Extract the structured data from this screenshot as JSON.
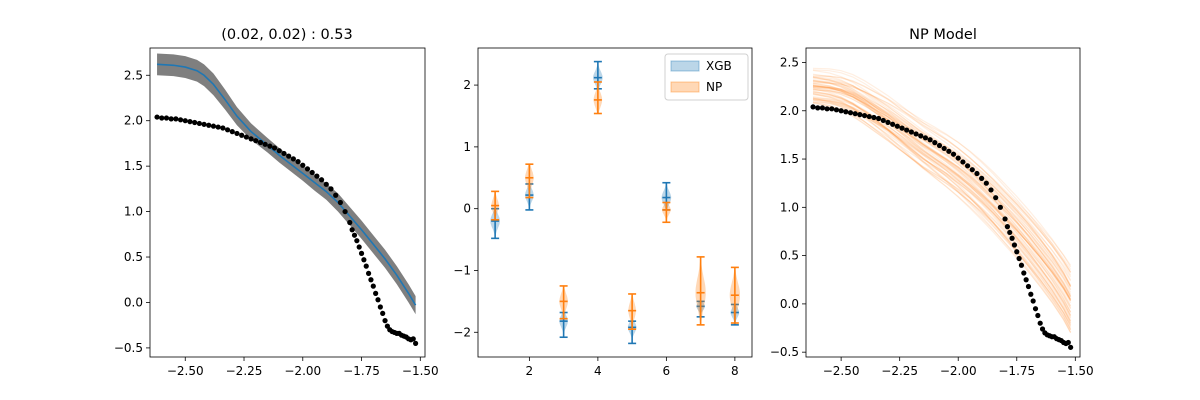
{
  "colors": {
    "xgb": "#1f77b4",
    "np": "#ff7f0e",
    "band": "#7f7f7f",
    "data": "#000000"
  },
  "chart_data": [
    {
      "type": "line",
      "title": "(0.02, 0.02) : 0.53",
      "xlim": [
        -2.65,
        -1.48
      ],
      "ylim": [
        -0.6,
        2.8
      ],
      "xticks": [
        -2.5,
        -2.25,
        -2.0,
        -1.75,
        -1.5
      ],
      "xtick_labels": [
        "−2.50",
        "−2.25",
        "−2.00",
        "−1.75",
        "−1.50"
      ],
      "yticks": [
        -0.5,
        0.0,
        0.5,
        1.0,
        1.5,
        2.0,
        2.5
      ],
      "ytick_labels": [
        "−0.5",
        "0.0",
        "0.5",
        "1.0",
        "1.5",
        "2.0",
        "2.5"
      ],
      "mean_line": {
        "x": [
          -2.62,
          -2.55,
          -2.5,
          -2.45,
          -2.42,
          -2.38,
          -2.33,
          -2.28,
          -2.22,
          -2.15,
          -2.1,
          -2.05,
          -2.0,
          -1.95,
          -1.9,
          -1.85,
          -1.8,
          -1.75,
          -1.7,
          -1.65,
          -1.6,
          -1.55,
          -1.52
        ],
        "y": [
          2.62,
          2.61,
          2.59,
          2.55,
          2.5,
          2.4,
          2.23,
          2.05,
          1.88,
          1.73,
          1.62,
          1.52,
          1.42,
          1.32,
          1.22,
          1.1,
          0.95,
          0.8,
          0.64,
          0.48,
          0.3,
          0.1,
          -0.03
        ]
      },
      "band_halfwidth": [
        0.12,
        0.12,
        0.12,
        0.12,
        0.12,
        0.12,
        0.11,
        0.1,
        0.09,
        0.08,
        0.08,
        0.08,
        0.08,
        0.09,
        0.09,
        0.1,
        0.1,
        0.1,
        0.1,
        0.1,
        0.1,
        0.1,
        0.1
      ],
      "scatter": {
        "x": [
          -2.62,
          -2.6,
          -2.58,
          -2.56,
          -2.54,
          -2.52,
          -2.5,
          -2.48,
          -2.46,
          -2.44,
          -2.42,
          -2.4,
          -2.38,
          -2.36,
          -2.34,
          -2.32,
          -2.3,
          -2.28,
          -2.26,
          -2.24,
          -2.22,
          -2.2,
          -2.18,
          -2.16,
          -2.14,
          -2.12,
          -2.1,
          -2.08,
          -2.06,
          -2.04,
          -2.02,
          -2.0,
          -1.98,
          -1.96,
          -1.94,
          -1.92,
          -1.9,
          -1.88,
          -1.86,
          -1.84,
          -1.82,
          -1.8,
          -1.79,
          -1.78,
          -1.77,
          -1.76,
          -1.75,
          -1.74,
          -1.73,
          -1.72,
          -1.71,
          -1.7,
          -1.69,
          -1.68,
          -1.67,
          -1.66,
          -1.65,
          -1.64,
          -1.63,
          -1.62,
          -1.61,
          -1.6,
          -1.59,
          -1.58,
          -1.57,
          -1.56,
          -1.55,
          -1.54,
          -1.53,
          -1.52
        ],
        "y": [
          2.04,
          2.03,
          2.03,
          2.02,
          2.02,
          2.01,
          2.0,
          1.99,
          1.98,
          1.97,
          1.96,
          1.95,
          1.94,
          1.93,
          1.92,
          1.9,
          1.88,
          1.86,
          1.84,
          1.82,
          1.8,
          1.78,
          1.76,
          1.74,
          1.72,
          1.7,
          1.67,
          1.64,
          1.61,
          1.58,
          1.55,
          1.51,
          1.47,
          1.43,
          1.39,
          1.35,
          1.3,
          1.25,
          1.18,
          1.1,
          1.0,
          0.88,
          0.8,
          0.74,
          0.68,
          0.61,
          0.54,
          0.47,
          0.4,
          0.32,
          0.25,
          0.18,
          0.1,
          0.03,
          -0.05,
          -0.12,
          -0.2,
          -0.26,
          -0.3,
          -0.32,
          -0.33,
          -0.34,
          -0.34,
          -0.36,
          -0.37,
          -0.38,
          -0.4,
          -0.41,
          -0.4,
          -0.45
        ]
      }
    },
    {
      "type": "violin",
      "title": "",
      "xlim": [
        0.5,
        8.5
      ],
      "ylim": [
        -2.4,
        2.6
      ],
      "xticks": [
        2,
        4,
        6,
        8
      ],
      "xtick_labels": [
        "2",
        "4",
        "6",
        "8"
      ],
      "yticks": [
        -2,
        -1,
        0,
        1,
        2
      ],
      "ytick_labels": [
        "−2",
        "−1",
        "0",
        "1",
        "2"
      ],
      "legend": {
        "position": "upper right",
        "entries": [
          "XGB",
          "NP"
        ]
      },
      "series": [
        {
          "name": "XGB",
          "x": [
            1,
            2,
            3,
            4,
            5,
            6,
            7,
            8
          ],
          "min": [
            -0.48,
            -0.02,
            -2.08,
            1.94,
            -2.18,
            -0.02,
            -1.75,
            -1.88
          ],
          "median": [
            -0.2,
            0.22,
            -1.82,
            2.12,
            -1.92,
            0.18,
            -1.58,
            -1.68
          ],
          "max": [
            0.0,
            0.4,
            -1.68,
            2.38,
            -1.82,
            0.42,
            -1.5,
            -1.55
          ],
          "width": [
            0.28,
            0.25,
            0.25,
            0.28,
            0.25,
            0.28,
            0.25,
            0.25
          ]
        },
        {
          "name": "NP",
          "x": [
            1,
            2,
            3,
            4,
            5,
            6,
            7,
            8
          ],
          "min": [
            -0.18,
            0.18,
            -1.78,
            1.54,
            -1.95,
            -0.22,
            -1.88,
            -1.85
          ],
          "median": [
            0.05,
            0.5,
            -1.5,
            1.76,
            -1.65,
            -0.02,
            -1.36,
            -1.4
          ],
          "max": [
            0.28,
            0.72,
            -1.25,
            2.05,
            -1.38,
            0.1,
            -0.78,
            -0.95
          ],
          "width": [
            0.22,
            0.25,
            0.25,
            0.25,
            0.22,
            0.25,
            0.3,
            0.3
          ]
        }
      ]
    },
    {
      "type": "line",
      "title": "NP Model",
      "xlim": [
        -2.65,
        -1.48
      ],
      "ylim": [
        -0.55,
        2.65
      ],
      "xticks": [
        -2.5,
        -2.25,
        -2.0,
        -1.75,
        -1.5
      ],
      "xtick_labels": [
        "−2.50",
        "−2.25",
        "−2.00",
        "−1.75",
        "−1.50"
      ],
      "yticks": [
        -0.5,
        0.0,
        0.5,
        1.0,
        1.5,
        2.0,
        2.5
      ],
      "ytick_labels": [
        "−0.5",
        "0.0",
        "0.5",
        "1.0",
        "1.5",
        "2.0",
        "2.5"
      ],
      "samples": {
        "count": 60,
        "x": [
          -2.62,
          -2.55,
          -2.5,
          -2.45,
          -2.4,
          -2.35,
          -2.3,
          -2.25,
          -2.2,
          -2.15,
          -2.1,
          -2.05,
          -2.0,
          -1.95,
          -1.9,
          -1.85,
          -1.8,
          -1.75,
          -1.7,
          -1.65,
          -1.6,
          -1.55,
          -1.52
        ],
        "mean_y": [
          2.25,
          2.23,
          2.2,
          2.15,
          2.08,
          2.0,
          1.92,
          1.83,
          1.74,
          1.65,
          1.57,
          1.49,
          1.4,
          1.3,
          1.19,
          1.07,
          0.94,
          0.81,
          0.67,
          0.52,
          0.36,
          0.18,
          0.05
        ],
        "spread_start": 0.22,
        "spread_end": 0.28
      },
      "scatter": {
        "x": [
          -2.62,
          -2.6,
          -2.58,
          -2.56,
          -2.54,
          -2.52,
          -2.5,
          -2.48,
          -2.46,
          -2.44,
          -2.42,
          -2.4,
          -2.38,
          -2.36,
          -2.34,
          -2.32,
          -2.3,
          -2.28,
          -2.26,
          -2.24,
          -2.22,
          -2.2,
          -2.18,
          -2.16,
          -2.14,
          -2.12,
          -2.1,
          -2.08,
          -2.06,
          -2.04,
          -2.02,
          -2.0,
          -1.98,
          -1.96,
          -1.94,
          -1.92,
          -1.9,
          -1.88,
          -1.86,
          -1.84,
          -1.82,
          -1.8,
          -1.79,
          -1.78,
          -1.77,
          -1.76,
          -1.75,
          -1.74,
          -1.73,
          -1.72,
          -1.71,
          -1.7,
          -1.69,
          -1.68,
          -1.67,
          -1.66,
          -1.65,
          -1.64,
          -1.63,
          -1.62,
          -1.61,
          -1.6,
          -1.59,
          -1.58,
          -1.57,
          -1.56,
          -1.55,
          -1.54,
          -1.53,
          -1.52
        ],
        "y": [
          2.04,
          2.03,
          2.03,
          2.02,
          2.02,
          2.01,
          2.0,
          1.99,
          1.98,
          1.97,
          1.96,
          1.95,
          1.94,
          1.93,
          1.92,
          1.9,
          1.88,
          1.86,
          1.84,
          1.82,
          1.8,
          1.78,
          1.76,
          1.74,
          1.72,
          1.7,
          1.67,
          1.64,
          1.61,
          1.58,
          1.55,
          1.51,
          1.47,
          1.43,
          1.39,
          1.35,
          1.3,
          1.25,
          1.18,
          1.1,
          1.0,
          0.88,
          0.8,
          0.74,
          0.68,
          0.61,
          0.54,
          0.47,
          0.4,
          0.32,
          0.25,
          0.18,
          0.1,
          0.03,
          -0.05,
          -0.12,
          -0.2,
          -0.26,
          -0.3,
          -0.32,
          -0.33,
          -0.34,
          -0.34,
          -0.36,
          -0.37,
          -0.38,
          -0.4,
          -0.41,
          -0.4,
          -0.45
        ]
      }
    }
  ]
}
